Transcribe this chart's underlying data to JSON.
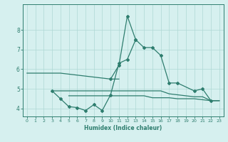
{
  "xlabel": "Humidex (Indice chaleur)",
  "x": [
    0,
    1,
    2,
    3,
    4,
    5,
    6,
    7,
    8,
    9,
    10,
    11,
    12,
    13,
    14,
    15,
    16,
    17,
    18,
    19,
    20,
    21,
    22,
    23
  ],
  "line_main": [
    null,
    null,
    null,
    null,
    null,
    null,
    null,
    null,
    null,
    null,
    5.5,
    6.2,
    8.7,
    7.5,
    7.1,
    7.1,
    6.7,
    5.3,
    5.3,
    null,
    4.9,
    5.0,
    4.4,
    null
  ],
  "line_mid": [
    null,
    null,
    null,
    4.9,
    4.5,
    4.1,
    4.05,
    3.9,
    4.2,
    3.9,
    4.7,
    6.3,
    6.5,
    7.5,
    null,
    null,
    null,
    null,
    null,
    null,
    null,
    null,
    null,
    null
  ],
  "line_flat1": [
    5.8,
    5.8,
    5.8,
    5.8,
    5.8,
    5.75,
    5.7,
    5.65,
    5.6,
    5.55,
    5.5,
    5.5,
    null,
    null,
    null,
    null,
    null,
    null,
    null,
    null,
    null,
    null,
    null,
    null
  ],
  "line_flat2": [
    null,
    null,
    null,
    4.9,
    4.9,
    4.9,
    4.9,
    4.9,
    4.9,
    4.9,
    4.9,
    4.9,
    4.9,
    4.9,
    4.9,
    4.9,
    4.9,
    4.75,
    4.7,
    4.65,
    4.6,
    4.6,
    4.4,
    4.4
  ],
  "line_flat3": [
    null,
    null,
    null,
    null,
    null,
    4.65,
    4.65,
    4.65,
    4.65,
    4.65,
    4.65,
    4.65,
    4.65,
    4.65,
    4.65,
    4.55,
    4.55,
    4.55,
    4.5,
    4.5,
    4.5,
    4.45,
    4.4,
    4.4
  ],
  "color": "#2e7d6e",
  "bg_color": "#d6f0ef",
  "grid_color": "#aed8d5",
  "ylim": [
    3.6,
    9.3
  ],
  "xlim": [
    -0.5,
    23.5
  ],
  "yticks": [
    4,
    5,
    6,
    7,
    8
  ],
  "xticks": [
    0,
    1,
    2,
    3,
    4,
    5,
    6,
    7,
    8,
    9,
    10,
    11,
    12,
    13,
    14,
    15,
    16,
    17,
    18,
    19,
    20,
    21,
    22,
    23
  ]
}
